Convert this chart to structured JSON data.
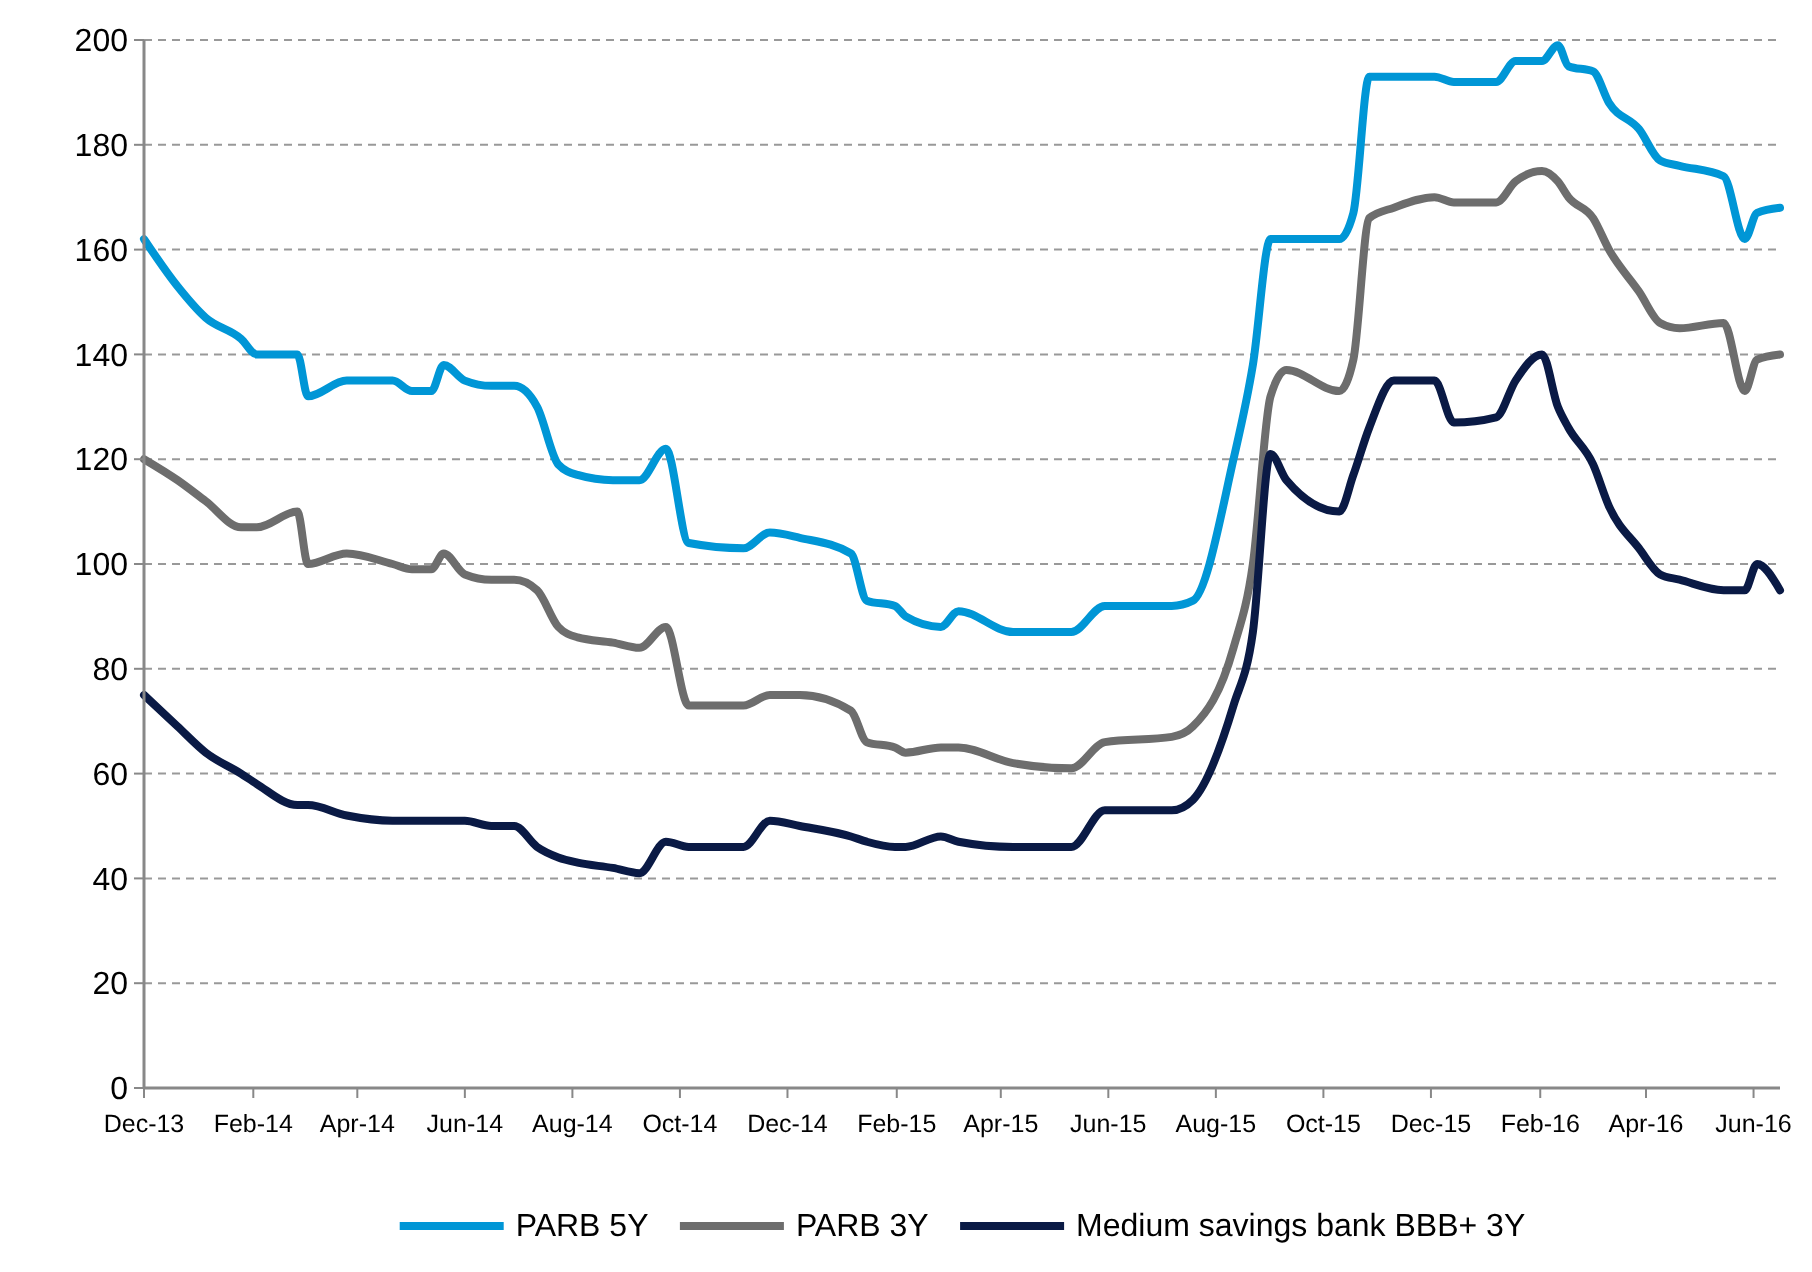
{
  "chart_data": {
    "type": "line",
    "x": [
      "2013-12-01",
      "2013-12-20",
      "2014-01-05",
      "2014-01-25",
      "2014-02-03",
      "2014-02-26",
      "2014-03-04",
      "2014-03-26",
      "2014-04-21",
      "2014-05-02",
      "2014-05-13",
      "2014-05-20",
      "2014-06-01",
      "2014-06-16",
      "2014-06-29",
      "2014-07-12",
      "2014-07-24",
      "2014-08-04",
      "2014-08-24",
      "2014-09-08",
      "2014-09-23",
      "2014-10-06",
      "2014-11-06",
      "2014-11-21",
      "2014-12-08",
      "2015-01-06",
      "2015-01-15",
      "2015-01-31",
      "2015-02-06",
      "2015-02-26",
      "2015-03-08",
      "2015-04-08",
      "2015-05-11",
      "2015-05-30",
      "2015-07-07",
      "2015-07-19",
      "2015-08-11",
      "2015-08-22",
      "2015-09-01",
      "2015-09-10",
      "2015-10-10",
      "2015-10-18",
      "2015-10-27",
      "2015-11-10",
      "2015-12-03",
      "2015-12-14",
      "2016-01-07",
      "2016-01-18",
      "2016-02-02",
      "2016-02-11",
      "2016-02-17",
      "2016-03-02",
      "2016-03-11",
      "2016-03-28",
      "2016-04-09",
      "2016-04-20",
      "2016-05-15",
      "2016-05-27",
      "2016-06-03",
      "2016-06-16"
    ],
    "series": [
      {
        "name": "PARB 5Y",
        "color": "#0096d6",
        "values": [
          162,
          153,
          147,
          143,
          140,
          140,
          132,
          135,
          135,
          133,
          133,
          138,
          135,
          134,
          134,
          130,
          119,
          117,
          116,
          116,
          122,
          104,
          103,
          106,
          105,
          102,
          93,
          92,
          90,
          88,
          91,
          87,
          87,
          92,
          92,
          93,
          120,
          138,
          162,
          162,
          162,
          167,
          193,
          193,
          193,
          192,
          192,
          196,
          196,
          199,
          195,
          194,
          188,
          183,
          177,
          176,
          174,
          162,
          167,
          168
        ]
      },
      {
        "name": "PARB 3Y",
        "color": "#6d6d6d",
        "values": [
          120,
          116,
          112,
          107,
          107,
          110,
          100,
          102,
          100,
          99,
          99,
          102,
          98,
          97,
          97,
          95,
          88,
          86,
          85,
          84,
          88,
          73,
          73,
          75,
          75,
          72,
          66,
          65,
          64,
          65,
          65,
          62,
          61,
          66,
          67,
          69,
          84,
          100,
          132,
          137,
          133,
          139,
          166,
          168,
          170,
          169,
          169,
          173,
          175,
          173,
          170,
          166,
          160,
          152,
          146,
          145,
          146,
          133,
          139,
          140
        ]
      },
      {
        "name": "Medium savings bank BBB+ 3Y",
        "color": "#0a1a45",
        "values": [
          75,
          69,
          64,
          60,
          58,
          54,
          54,
          52,
          51,
          51,
          51,
          51,
          51,
          50,
          50,
          46,
          44,
          43,
          42,
          41,
          47,
          46,
          46,
          51,
          50,
          48,
          47,
          46,
          46,
          48,
          47,
          46,
          46,
          53,
          53,
          55,
          73,
          87,
          121,
          116,
          110,
          117,
          126,
          135,
          135,
          127,
          128,
          135,
          140,
          130,
          126,
          119,
          111,
          103,
          98,
          97,
          95,
          95,
          100,
          95
        ]
      }
    ],
    "xlim": [
      "2013-12-01",
      "2016-06-16"
    ],
    "xticks": [
      {
        "value": "2013-12-01",
        "label": "Dec-13"
      },
      {
        "value": "2014-02-01",
        "label": "Feb-14"
      },
      {
        "value": "2014-04-01",
        "label": "Apr-14"
      },
      {
        "value": "2014-06-01",
        "label": "Jun-14"
      },
      {
        "value": "2014-08-01",
        "label": "Aug-14"
      },
      {
        "value": "2014-10-01",
        "label": "Oct-14"
      },
      {
        "value": "2014-12-01",
        "label": "Dec-14"
      },
      {
        "value": "2015-02-01",
        "label": "Feb-15"
      },
      {
        "value": "2015-04-01",
        "label": "Apr-15"
      },
      {
        "value": "2015-06-01",
        "label": "Jun-15"
      },
      {
        "value": "2015-08-01",
        "label": "Aug-15"
      },
      {
        "value": "2015-10-01",
        "label": "Oct-15"
      },
      {
        "value": "2015-12-01",
        "label": "Dec-15"
      },
      {
        "value": "2016-02-01",
        "label": "Feb-16"
      },
      {
        "value": "2016-04-01",
        "label": "Apr-16"
      },
      {
        "value": "2016-06-01",
        "label": "Jun-16"
      }
    ],
    "ylim": [
      0,
      200
    ],
    "yticks": [
      0,
      20,
      40,
      60,
      80,
      100,
      120,
      140,
      160,
      180,
      200
    ],
    "grid": "y",
    "legend": "bottom",
    "marker": "none",
    "line_style": "solid"
  }
}
